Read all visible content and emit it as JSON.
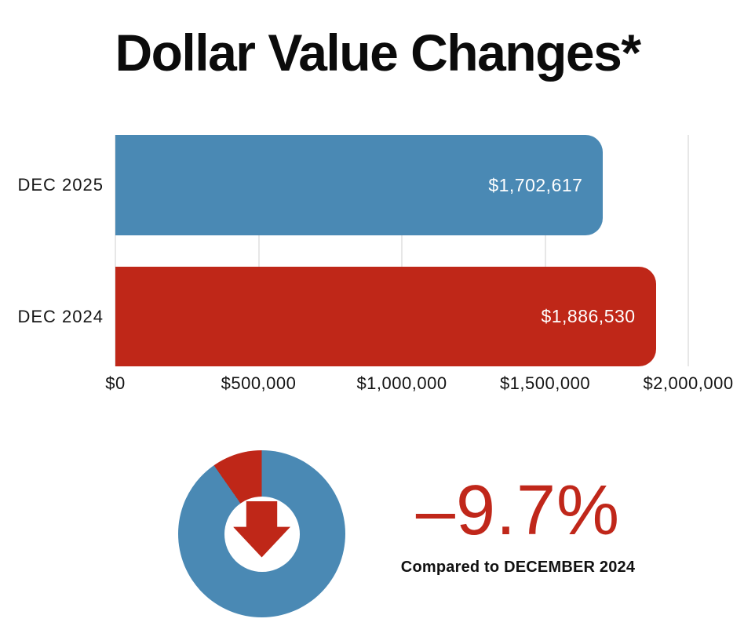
{
  "title": "Dollar Value Changes*",
  "chart_data": [
    {
      "type": "bar",
      "orientation": "horizontal",
      "categories": [
        "DEC 2025",
        "DEC 2024"
      ],
      "values": [
        1702617,
        1886530
      ],
      "value_labels": [
        "$1,702,617",
        "$1,886,530"
      ],
      "bar_colors": [
        "#4A89B4",
        "#BF2718"
      ],
      "value_label_color": "#FFFFFF",
      "x_ticks": [
        "$0",
        "$500,000",
        "$1,000,000",
        "$1,500,000",
        "$2,000,000"
      ],
      "x_tick_values": [
        0,
        500000,
        1000000,
        1500000,
        2000000
      ],
      "xlim": [
        0,
        2000000
      ],
      "grid": true,
      "gridline_color": "#E7E7E7"
    },
    {
      "type": "pie",
      "style": "donut",
      "slices": [
        {
          "label": "decline",
          "value": 9.7,
          "color": "#BF2718"
        },
        {
          "label": "remainder",
          "value": 90.3,
          "color": "#4A89B4"
        }
      ],
      "slice_direction": "counterclockwise-from-top",
      "center_icon": "down-arrow",
      "icon_color": "#BF2718"
    }
  ],
  "summary": {
    "percent_change": "–9.7%",
    "percent_color": "#C0271A",
    "caption": "Compared to DECEMBER 2024"
  }
}
